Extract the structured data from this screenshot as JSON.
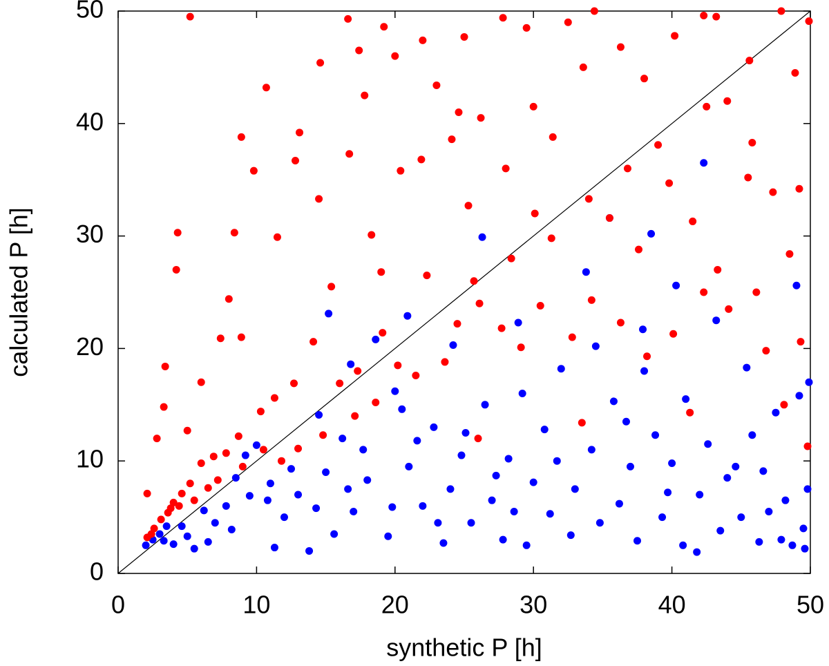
{
  "chart_data": {
    "type": "scatter",
    "xlabel": "synthetic P [h]",
    "ylabel": "calculated P [h]",
    "xlim": [
      0,
      50
    ],
    "ylim": [
      0,
      50
    ],
    "xticks": [
      0,
      10,
      20,
      30,
      40,
      50
    ],
    "yticks": [
      0,
      10,
      20,
      30,
      40,
      50
    ],
    "series": [
      {
        "color": "#0000ff",
        "x": [
          2,
          2.5,
          3,
          3.5,
          4,
          5,
          5.5,
          6.5,
          7,
          7.8,
          8.5,
          9.2,
          10,
          10.8,
          11.3,
          12,
          13,
          13.8,
          14.5,
          15,
          15.6,
          16.2,
          17,
          18,
          18.6,
          19.5,
          20,
          20.9,
          21,
          22,
          22.8,
          23.5,
          24,
          24.8,
          25.5,
          26.3,
          26.5,
          27,
          27.8,
          28.2,
          28.9,
          29.5,
          30,
          30.8,
          31.2,
          32,
          32.7,
          33,
          33.8,
          34.2,
          34.8,
          35.5,
          35.8,
          36.2,
          37,
          37.5,
          38,
          38.5,
          38.8,
          39.3,
          40,
          40.3,
          40.8,
          41,
          41.8,
          42,
          42.3,
          42.6,
          43.2,
          43.5,
          44,
          45,
          45.4,
          45.8,
          46.3,
          46.6,
          47,
          47.5,
          47.9,
          48.2,
          48.7,
          49,
          49.2,
          49.5,
          49.8,
          49.9,
          49.6,
          44.6,
          39.7,
          36.7,
          31.7,
          29.2,
          27.3,
          25.1,
          23.1,
          21.6,
          19.8,
          17.7,
          16.6,
          14.3,
          12.5,
          11,
          9.5,
          8.2,
          6.2,
          4.6,
          3.3,
          28.6,
          34.5,
          37.9,
          24.2,
          20.5,
          16.8,
          15.2
        ],
        "y": [
          2.5,
          3,
          3.5,
          4.2,
          2.6,
          3.3,
          2.2,
          2.8,
          4.5,
          6,
          8.5,
          10.5,
          11.4,
          6.5,
          2.3,
          5,
          7,
          2,
          14.1,
          9,
          3.5,
          12,
          5.5,
          8.3,
          20.8,
          3.3,
          16.2,
          22.9,
          9.5,
          6,
          13,
          2.7,
          7.5,
          10.5,
          4.5,
          29.9,
          15,
          6.5,
          3,
          10.2,
          22.3,
          2.5,
          8.1,
          12.8,
          5.3,
          18.2,
          3.4,
          7.5,
          26.8,
          11,
          4.5,
          31.6,
          15.3,
          6.2,
          9.5,
          2.9,
          18,
          30.2,
          12.3,
          5,
          9.8,
          25.6,
          2.5,
          15.5,
          1.9,
          7,
          36.5,
          11.5,
          22.5,
          3.8,
          8.5,
          5,
          18.3,
          12.3,
          2.8,
          9.1,
          5.5,
          14.3,
          3,
          6.5,
          2.5,
          25.6,
          15.8,
          4,
          7.5,
          17,
          2.2,
          9.5,
          7.2,
          13.5,
          10,
          16,
          8.7,
          12.5,
          4.5,
          11.8,
          5.9,
          11,
          7.5,
          5.8,
          9.3,
          8,
          6.9,
          3.9,
          5.6,
          4.2,
          2.9,
          5.5,
          20.2,
          21.7,
          20.3,
          14.6,
          18.6,
          23.1
        ]
      },
      {
        "color": "#ff0000",
        "x": [
          5.2,
          10.7,
          14.6,
          16.6,
          17.4,
          19.2,
          20,
          22,
          25,
          27.8,
          29.5,
          32.5,
          34.4,
          36.3,
          40.2,
          42.3,
          43.2,
          47.9,
          49.9,
          48.9,
          45.6,
          44,
          38,
          33.6,
          30,
          26.2,
          23,
          17.8,
          13.1,
          8.9,
          9.8,
          12.8,
          4.3,
          4.2,
          3.4,
          3.3,
          6,
          7.4,
          8.9,
          11.5,
          14.5,
          15.4,
          16.7,
          18.3,
          20.4,
          21.9,
          24.1,
          25.3,
          28,
          30.1,
          31.4,
          34,
          35.5,
          37.6,
          39.8,
          41.5,
          43.3,
          45.5,
          47.3,
          49.2,
          48.5,
          46.1,
          44.1,
          42.3,
          40.1,
          38.2,
          36.3,
          34.2,
          32.8,
          30.5,
          29.1,
          27.7,
          26.1,
          24.5,
          22.3,
          20.2,
          19.1,
          17.3,
          16,
          14.1,
          12.7,
          11.3,
          10.3,
          8.7,
          7.8,
          6.9,
          6,
          5.2,
          4.6,
          4,
          3.6,
          3.1,
          2.6,
          2.1,
          2.4,
          3.8,
          4.4,
          5.5,
          6.5,
          7.2,
          9,
          10.5,
          11.8,
          13,
          14.8,
          17.1,
          18.6,
          21.5,
          23.6,
          26,
          33.5,
          41.3,
          46.8,
          49.8,
          48.1,
          49.3,
          45.8,
          42.5,
          39,
          36.8,
          31.3,
          28.4,
          25.7,
          2.8,
          2.1,
          5,
          8,
          8.4,
          19,
          24.6
        ],
        "y": [
          49.5,
          43.2,
          45.4,
          49.3,
          46.5,
          48.6,
          46,
          47.4,
          47.7,
          49.4,
          48.5,
          49,
          50,
          46.8,
          47.8,
          49.6,
          49.5,
          50,
          49.1,
          44.5,
          45.6,
          42,
          44,
          45,
          41.5,
          40.5,
          43.4,
          42.5,
          39.2,
          38.8,
          35.8,
          36.7,
          30.3,
          27,
          18.4,
          14.8,
          17,
          20.9,
          21,
          29.9,
          33.3,
          25.5,
          37.3,
          30.1,
          35.8,
          36.8,
          38.6,
          32.7,
          36,
          32,
          38.8,
          33.3,
          31.6,
          28.8,
          34.7,
          31.3,
          27,
          35.2,
          33.9,
          34.2,
          28.4,
          25,
          23.5,
          25,
          21.3,
          19.3,
          22.3,
          24.3,
          21,
          23.8,
          20.1,
          21.8,
          24,
          22.2,
          26.5,
          18.5,
          21.4,
          18,
          16.9,
          20.6,
          16.9,
          15.6,
          14.4,
          12.2,
          10.7,
          10.4,
          9.8,
          8,
          7.1,
          6.3,
          5.4,
          4.8,
          4,
          3.2,
          3.5,
          5.8,
          6,
          6.5,
          7.6,
          8.3,
          9.5,
          11,
          10,
          11.1,
          12.3,
          14,
          15.2,
          17.6,
          18.8,
          12,
          13.4,
          14.3,
          19.8,
          11.3,
          15,
          20.6,
          38.3,
          41.5,
          38.1,
          36,
          29.8,
          28,
          26,
          12,
          7.1,
          12.7,
          24.4,
          30.3,
          26.8,
          41
        ]
      }
    ]
  }
}
